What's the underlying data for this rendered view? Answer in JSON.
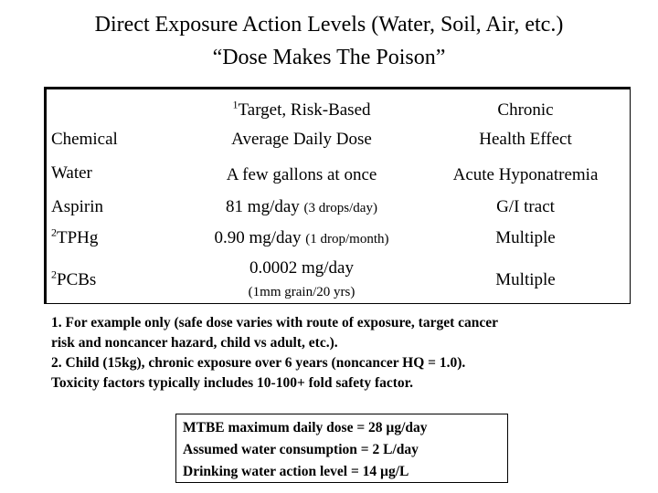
{
  "title": {
    "line1": "Direct Exposure Action Levels (Water, Soil, Air, etc.)",
    "line2": "“Dose Makes The Poison”"
  },
  "table": {
    "headers": {
      "chemical": "Chemical",
      "dose_sup": "1",
      "dose_line1": "Target, Risk-Based",
      "dose_line2": "Average Daily Dose",
      "effect_line1": "Chronic",
      "effect_line2": "Health Effect"
    },
    "rows": [
      {
        "sup": "",
        "chemical": "Water",
        "dose_main": "A few gallons at once",
        "dose_note": "",
        "effect": "Acute Hyponatremia"
      },
      {
        "sup": "",
        "chemical": "Aspirin",
        "dose_main": "81 mg/day",
        "dose_note": "(3 drops/day)",
        "effect": "G/I tract"
      },
      {
        "sup": "2",
        "chemical": "TPHg",
        "dose_main": "0.90 mg/day",
        "dose_note": "(1 drop/month)",
        "effect": "Multiple"
      },
      {
        "sup": "2",
        "chemical": "PCBs",
        "dose_main": "0.0002 mg/day",
        "dose_note": "(1mm grain/20 yrs)",
        "effect": "Multiple"
      }
    ]
  },
  "notes": [
    "1. For example only (safe dose varies with route of exposure, target cancer",
    "risk  and noncancer hazard, child vs adult, etc.).",
    "2. Child (15kg), chronic exposure over 6 years (noncancer HQ = 1.0).",
    "Toxicity factors typically includes 10-100+ fold safety factor."
  ],
  "mtbe_box": [
    "MTBE maximum daily dose = 28 µg/day",
    "Assumed water consumption = 2 L/day",
    "Drinking water action level = 14 µg/L"
  ]
}
